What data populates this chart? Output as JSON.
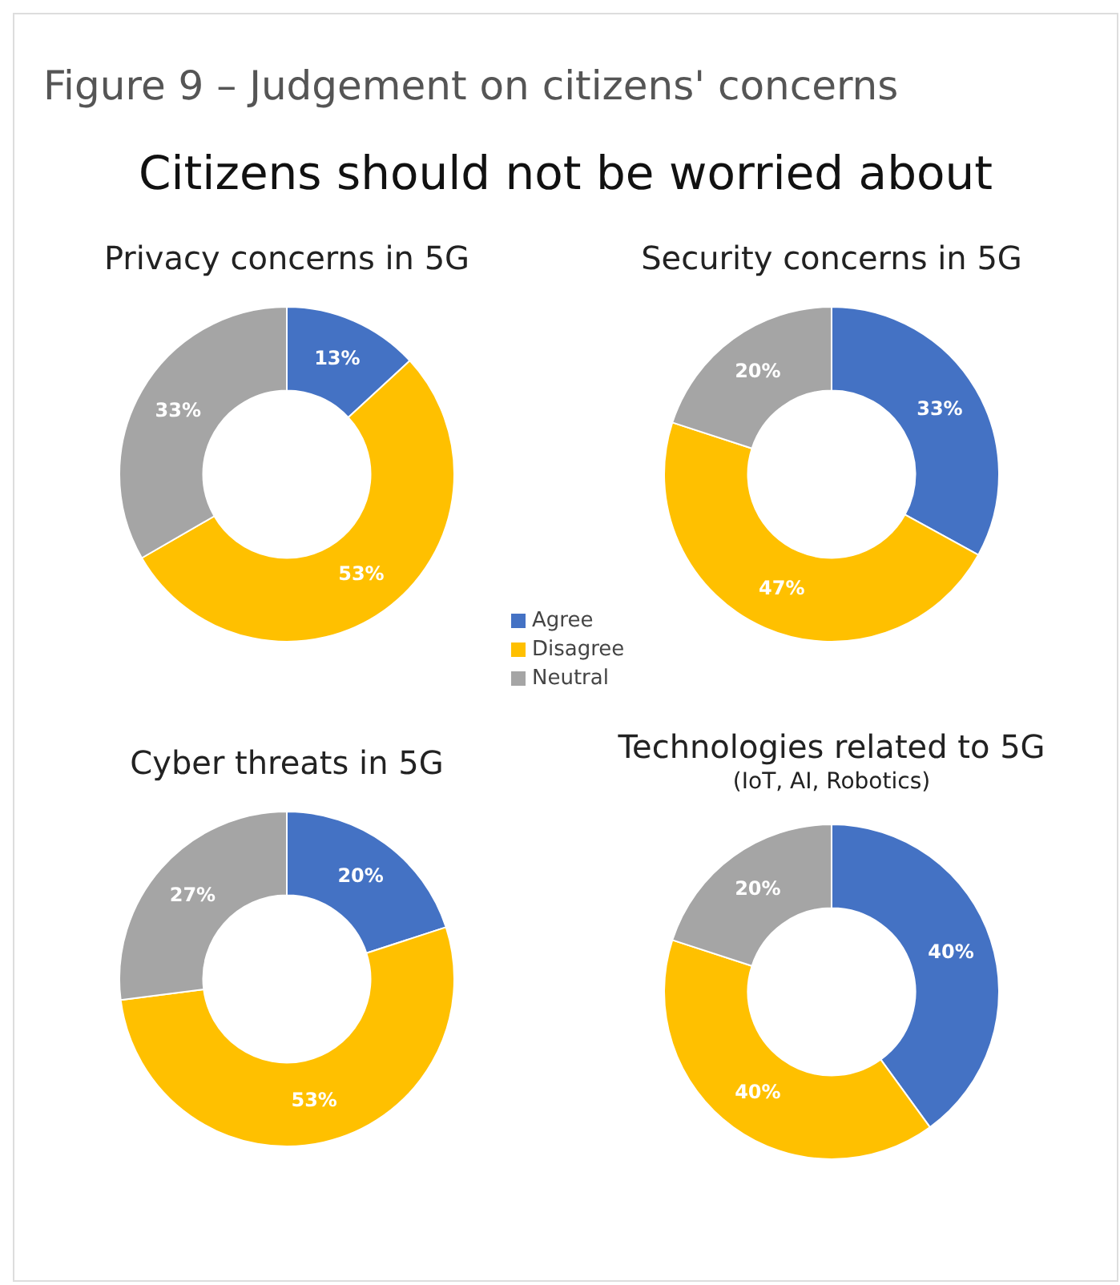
{
  "chart_data": [
    {
      "type": "other",
      "title": "Figure 9 – Judgement on citizens' concerns",
      "subtitle": "Citizens should not be worried about"
    },
    {
      "type": "donut",
      "title": "Privacy concerns in 5G",
      "categories": [
        "Agree",
        "Disagree",
        "Neutral"
      ],
      "values": [
        13,
        53,
        33
      ],
      "value_labels": [
        "13%",
        "53%",
        "33%"
      ],
      "colors": [
        "#4472c4",
        "#ffc000",
        "#a5a5a5"
      ],
      "legend": "bottom right"
    },
    {
      "type": "donut",
      "title": "Security concerns in 5G",
      "categories": [
        null,
        null,
        null
      ],
      "values": [
        33,
        47,
        20
      ],
      "value_labels": [
        "33%",
        "47%",
        "20%"
      ],
      "colors": [
        "#4472c4",
        "#ffc000",
        "#a5a5a5"
      ]
    },
    {
      "type": "donut",
      "title": "Cyber threats in 5G",
      "categories": [
        null,
        null,
        null
      ],
      "values": [
        20,
        53,
        27
      ],
      "value_labels": [
        "20%",
        "53%",
        "27%"
      ],
      "colors": [
        "#4472c4",
        "#ffc000",
        "#a5a5a5"
      ]
    },
    {
      "type": "donut",
      "title": "Technologies related to 5G",
      "subtitle": "(IoT, AI, Robotics)",
      "categories": [
        null,
        null,
        null
      ],
      "values": [
        40,
        40,
        20
      ],
      "value_labels": [
        "40%",
        "40%",
        "20%"
      ],
      "colors": [
        "#4472c4",
        "#ffc000",
        "#a5a5a5"
      ]
    }
  ]
}
